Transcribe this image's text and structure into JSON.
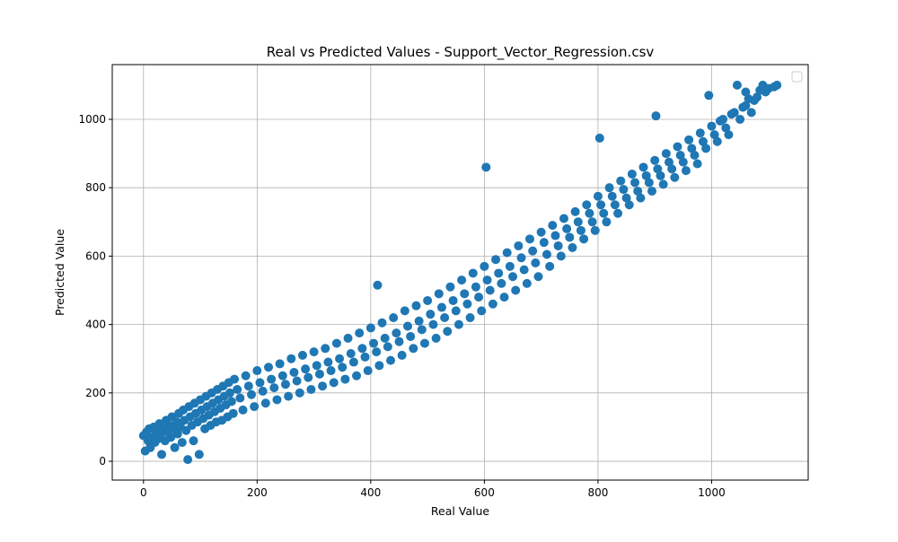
{
  "chart_data": {
    "type": "scatter",
    "title": "Real vs Predicted Values - Support_Vector_Regression.csv",
    "xlabel": "Real Value",
    "ylabel": "Predicted Value",
    "xlim": [
      -55,
      1170
    ],
    "ylim": [
      -55,
      1160
    ],
    "xticks": [
      0,
      200,
      400,
      600,
      800,
      1000
    ],
    "yticks": [
      0,
      200,
      400,
      600,
      800,
      1000
    ],
    "xtick_labels": [
      "0",
      "200",
      "400",
      "600",
      "800",
      "1000"
    ],
    "ytick_labels": [
      "0",
      "200",
      "400",
      "600",
      "800",
      "1000"
    ],
    "grid": true,
    "legend": "top-right (empty)",
    "marker_color": "#1f77b4",
    "series": [
      {
        "values": [
          [
            0,
            75
          ],
          [
            3,
            30
          ],
          [
            5,
            85
          ],
          [
            8,
            60
          ],
          [
            10,
            95
          ],
          [
            12,
            40
          ],
          [
            15,
            70
          ],
          [
            18,
            100
          ],
          [
            20,
            55
          ],
          [
            22,
            88
          ],
          [
            25,
            65
          ],
          [
            28,
            110
          ],
          [
            30,
            80
          ],
          [
            32,
            20
          ],
          [
            35,
            95
          ],
          [
            38,
            60
          ],
          [
            40,
            120
          ],
          [
            42,
            85
          ],
          [
            45,
            105
          ],
          [
            48,
            70
          ],
          [
            50,
            130
          ],
          [
            52,
            95
          ],
          [
            55,
            40
          ],
          [
            58,
            115
          ],
          [
            60,
            80
          ],
          [
            62,
            140
          ],
          [
            65,
            100
          ],
          [
            68,
            55
          ],
          [
            70,
            150
          ],
          [
            72,
            120
          ],
          [
            75,
            90
          ],
          [
            78,
            5
          ],
          [
            80,
            160
          ],
          [
            82,
            130
          ],
          [
            85,
            105
          ],
          [
            88,
            60
          ],
          [
            90,
            170
          ],
          [
            92,
            140
          ],
          [
            95,
            115
          ],
          [
            98,
            20
          ],
          [
            100,
            180
          ],
          [
            102,
            150
          ],
          [
            105,
            125
          ],
          [
            108,
            95
          ],
          [
            110,
            190
          ],
          [
            112,
            160
          ],
          [
            115,
            135
          ],
          [
            118,
            105
          ],
          [
            120,
            200
          ],
          [
            122,
            170
          ],
          [
            125,
            145
          ],
          [
            128,
            115
          ],
          [
            130,
            210
          ],
          [
            132,
            180
          ],
          [
            135,
            155
          ],
          [
            138,
            120
          ],
          [
            140,
            220
          ],
          [
            142,
            190
          ],
          [
            145,
            165
          ],
          [
            148,
            130
          ],
          [
            150,
            230
          ],
          [
            152,
            200
          ],
          [
            155,
            175
          ],
          [
            158,
            140
          ],
          [
            160,
            240
          ],
          [
            165,
            210
          ],
          [
            170,
            185
          ],
          [
            175,
            150
          ],
          [
            180,
            250
          ],
          [
            185,
            220
          ],
          [
            190,
            195
          ],
          [
            195,
            160
          ],
          [
            200,
            265
          ],
          [
            205,
            230
          ],
          [
            210,
            205
          ],
          [
            215,
            170
          ],
          [
            220,
            275
          ],
          [
            225,
            240
          ],
          [
            230,
            215
          ],
          [
            235,
            180
          ],
          [
            240,
            285
          ],
          [
            245,
            250
          ],
          [
            250,
            225
          ],
          [
            255,
            190
          ],
          [
            260,
            300
          ],
          [
            265,
            260
          ],
          [
            270,
            235
          ],
          [
            275,
            200
          ],
          [
            280,
            310
          ],
          [
            285,
            270
          ],
          [
            290,
            245
          ],
          [
            295,
            210
          ],
          [
            300,
            320
          ],
          [
            305,
            280
          ],
          [
            310,
            255
          ],
          [
            315,
            220
          ],
          [
            320,
            330
          ],
          [
            325,
            290
          ],
          [
            330,
            265
          ],
          [
            335,
            230
          ],
          [
            340,
            345
          ],
          [
            345,
            300
          ],
          [
            350,
            275
          ],
          [
            355,
            240
          ],
          [
            360,
            360
          ],
          [
            365,
            315
          ],
          [
            370,
            290
          ],
          [
            375,
            250
          ],
          [
            380,
            375
          ],
          [
            385,
            330
          ],
          [
            390,
            305
          ],
          [
            395,
            265
          ],
          [
            400,
            390
          ],
          [
            405,
            345
          ],
          [
            410,
            320
          ],
          [
            412,
            515
          ],
          [
            415,
            280
          ],
          [
            420,
            405
          ],
          [
            425,
            360
          ],
          [
            430,
            335
          ],
          [
            435,
            295
          ],
          [
            440,
            420
          ],
          [
            445,
            375
          ],
          [
            450,
            350
          ],
          [
            455,
            310
          ],
          [
            460,
            440
          ],
          [
            465,
            395
          ],
          [
            470,
            365
          ],
          [
            475,
            330
          ],
          [
            480,
            455
          ],
          [
            485,
            410
          ],
          [
            490,
            385
          ],
          [
            495,
            345
          ],
          [
            500,
            470
          ],
          [
            505,
            430
          ],
          [
            510,
            400
          ],
          [
            515,
            360
          ],
          [
            520,
            490
          ],
          [
            525,
            450
          ],
          [
            530,
            420
          ],
          [
            535,
            380
          ],
          [
            540,
            510
          ],
          [
            545,
            470
          ],
          [
            550,
            440
          ],
          [
            555,
            400
          ],
          [
            560,
            530
          ],
          [
            565,
            490
          ],
          [
            570,
            460
          ],
          [
            575,
            420
          ],
          [
            580,
            550
          ],
          [
            585,
            510
          ],
          [
            590,
            480
          ],
          [
            595,
            440
          ],
          [
            600,
            570
          ],
          [
            603,
            860
          ],
          [
            605,
            530
          ],
          [
            610,
            500
          ],
          [
            615,
            460
          ],
          [
            620,
            590
          ],
          [
            625,
            550
          ],
          [
            630,
            520
          ],
          [
            635,
            480
          ],
          [
            640,
            610
          ],
          [
            645,
            570
          ],
          [
            650,
            540
          ],
          [
            655,
            500
          ],
          [
            660,
            630
          ],
          [
            665,
            595
          ],
          [
            670,
            560
          ],
          [
            675,
            520
          ],
          [
            680,
            650
          ],
          [
            685,
            615
          ],
          [
            690,
            580
          ],
          [
            695,
            540
          ],
          [
            700,
            670
          ],
          [
            705,
            640
          ],
          [
            710,
            605
          ],
          [
            715,
            570
          ],
          [
            720,
            690
          ],
          [
            725,
            660
          ],
          [
            730,
            630
          ],
          [
            735,
            600
          ],
          [
            740,
            710
          ],
          [
            745,
            680
          ],
          [
            750,
            655
          ],
          [
            755,
            625
          ],
          [
            760,
            730
          ],
          [
            765,
            700
          ],
          [
            770,
            675
          ],
          [
            775,
            650
          ],
          [
            780,
            750
          ],
          [
            785,
            725
          ],
          [
            790,
            700
          ],
          [
            795,
            675
          ],
          [
            800,
            775
          ],
          [
            803,
            945
          ],
          [
            805,
            750
          ],
          [
            810,
            725
          ],
          [
            815,
            700
          ],
          [
            820,
            800
          ],
          [
            825,
            775
          ],
          [
            830,
            750
          ],
          [
            835,
            725
          ],
          [
            840,
            820
          ],
          [
            845,
            795
          ],
          [
            850,
            770
          ],
          [
            855,
            750
          ],
          [
            860,
            840
          ],
          [
            865,
            815
          ],
          [
            870,
            790
          ],
          [
            875,
            770
          ],
          [
            880,
            860
          ],
          [
            885,
            835
          ],
          [
            890,
            815
          ],
          [
            895,
            790
          ],
          [
            900,
            880
          ],
          [
            902,
            1010
          ],
          [
            905,
            855
          ],
          [
            910,
            835
          ],
          [
            915,
            810
          ],
          [
            920,
            900
          ],
          [
            925,
            875
          ],
          [
            930,
            855
          ],
          [
            935,
            830
          ],
          [
            940,
            920
          ],
          [
            945,
            895
          ],
          [
            950,
            875
          ],
          [
            955,
            850
          ],
          [
            960,
            940
          ],
          [
            965,
            915
          ],
          [
            970,
            895
          ],
          [
            975,
            870
          ],
          [
            980,
            960
          ],
          [
            985,
            935
          ],
          [
            990,
            915
          ],
          [
            995,
            1070
          ],
          [
            1000,
            980
          ],
          [
            1005,
            955
          ],
          [
            1010,
            935
          ],
          [
            1015,
            995
          ],
          [
            1020,
            1000
          ],
          [
            1025,
            975
          ],
          [
            1030,
            955
          ],
          [
            1035,
            1015
          ],
          [
            1040,
            1020
          ],
          [
            1045,
            1100
          ],
          [
            1050,
            1000
          ],
          [
            1055,
            1035
          ],
          [
            1060,
            1040
          ],
          [
            1065,
            1060
          ],
          [
            1070,
            1020
          ],
          [
            1075,
            1055
          ],
          [
            1080,
            1065
          ],
          [
            1085,
            1085
          ],
          [
            1090,
            1100
          ],
          [
            1095,
            1080
          ],
          [
            1100,
            1090
          ],
          [
            1110,
            1095
          ],
          [
            1115,
            1100
          ],
          [
            1060,
            1080
          ]
        ]
      }
    ]
  }
}
